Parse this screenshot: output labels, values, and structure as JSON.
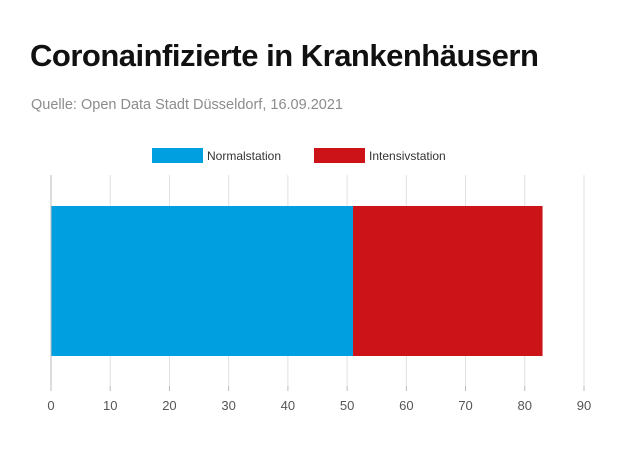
{
  "header": {
    "title": "Coronainfizierte in Krankenhäusern",
    "subtitle": "Quelle: Open Data Stadt Düsseldorf, 16.09.2021"
  },
  "chart_data": {
    "type": "bar",
    "orientation": "horizontal",
    "stacked": true,
    "categories": [
      ""
    ],
    "series": [
      {
        "name": "Normalstation",
        "values": [
          51
        ],
        "color": "#009fdf"
      },
      {
        "name": "Intensivstation",
        "values": [
          32
        ],
        "color": "#cc1318"
      }
    ],
    "title": "Coronainfizierte in Krankenhäusern",
    "subtitle": "Quelle: Open Data Stadt Düsseldorf, 16.09.2021",
    "xlim": [
      0,
      90
    ],
    "xticks": [
      0,
      10,
      20,
      30,
      40,
      50,
      60,
      70,
      80,
      90
    ],
    "grid": true,
    "legend": "top-center"
  }
}
